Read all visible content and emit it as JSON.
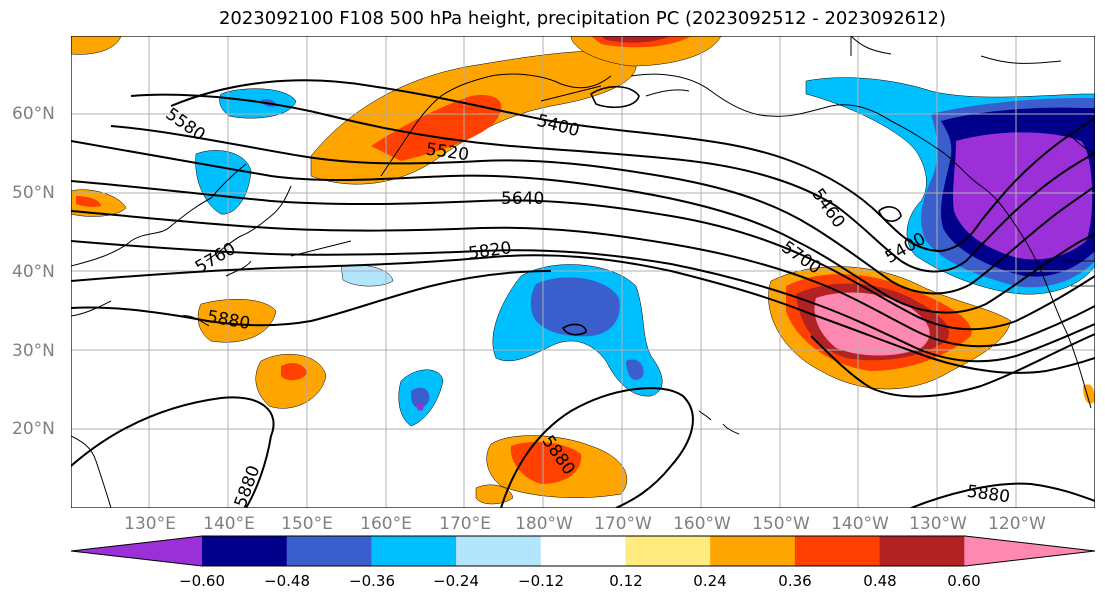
{
  "title": "2023092100 F108 500 hPa height, precipitation PC (2023092512 - 2023092612)",
  "lat_labels": [
    "60°N",
    "50°N",
    "40°N",
    "30°N",
    "20°N"
  ],
  "lon_labels": [
    "130°E",
    "140°E",
    "150°E",
    "160°E",
    "170°E",
    "180°W",
    "170°W",
    "160°W",
    "150°W",
    "140°W",
    "130°W",
    "120°W"
  ],
  "contour_labels": [
    "5580",
    "5400",
    "5520",
    "5640",
    "5820",
    "5760",
    "5460",
    "5700",
    "5400",
    "5880",
    "5880",
    "5880",
    "5880"
  ],
  "colorbar": {
    "ticks": [
      "−0.60",
      "−0.48",
      "−0.36",
      "−0.24",
      "−0.12",
      "0.12",
      "0.24",
      "0.36",
      "0.48",
      "0.60"
    ],
    "colors": [
      "#9b30d9",
      "#00008b",
      "#3a5fcd",
      "#00bfff",
      "#b3e5fc",
      "#ffffff",
      "#ffeb80",
      "#ffa500",
      "#ff4000",
      "#b22222",
      "#ff88b0"
    ]
  },
  "shading_colors": {
    "neg_strong": "#9b30d9",
    "neg_navy": "#00008b",
    "neg_blue": "#3a5fcd",
    "neg_sky": "#00bfff",
    "neg_light": "#b3e5fc",
    "pos_yellow": "#ffeb80",
    "pos_orange": "#ffa500",
    "pos_redorange": "#ff4000",
    "pos_darkred": "#b22222",
    "pos_pink": "#ff88b0"
  }
}
